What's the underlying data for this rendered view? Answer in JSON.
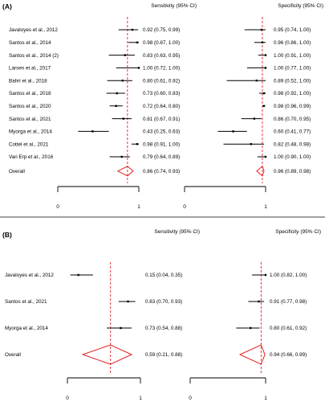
{
  "chart_data": [
    {
      "type": "forest",
      "panel_label": "(A)",
      "col_headers": {
        "sensitivity": "Sensitivity (95% CI)",
        "specificity": "Specificity (95% CI)"
      },
      "axis_ticks": [
        0,
        1
      ],
      "xlim": [
        0,
        1
      ],
      "pooled_line_color": "#e02020",
      "summary_color": "#e02020",
      "studies": [
        {
          "label": "Javaloyes et al., 2012",
          "sens": [
            0.92,
            0.75,
            0.99
          ],
          "sens_text": "0.92 (0.75, 0.99)",
          "spec": [
            0.95,
            0.74,
            1.0
          ],
          "spec_text": "0.95 (0.74, 1.00)"
        },
        {
          "label": "Santos et al., 2014",
          "sens": [
            0.98,
            0.87,
            1.0
          ],
          "sens_text": "0.98 (0.87, 1.00)",
          "spec": [
            0.96,
            0.86,
            1.0
          ],
          "spec_text": "0.96 (0.86, 1.00)"
        },
        {
          "label": "Santos et al., 2014 (2)",
          "sens": [
            0.83,
            0.63,
            0.95
          ],
          "sens_text": "0.83 (0.63, 0.95)",
          "spec": [
            1.0,
            0.91,
            1.0
          ],
          "spec_text": "1.00 (0.91, 1.00)"
        },
        {
          "label": "Larsen et al., 2017",
          "sens": [
            1.0,
            0.72,
            1.0
          ],
          "sens_text": "1.00 (0.72, 1.00)",
          "spec": [
            1.0,
            0.77,
            1.0
          ],
          "spec_text": "1.00 (0.77, 1.00)"
        },
        {
          "label": "Bahri et al., 2018",
          "sens": [
            0.8,
            0.61,
            0.92
          ],
          "sens_text": "0.80 (0.61, 0.92)",
          "spec": [
            0.89,
            0.52,
            1.0
          ],
          "spec_text": "0.89 (0.52, 1.00)"
        },
        {
          "label": "Santos et al., 2018",
          "sens": [
            0.73,
            0.6,
            0.83
          ],
          "sens_text": "0.73 (0.60, 0.83)",
          "spec": [
            0.98,
            0.92,
            1.0
          ],
          "spec_text": "0.98 (0.92, 1.00)"
        },
        {
          "label": "Santos et al., 2020",
          "sens": [
            0.72,
            0.64,
            0.8
          ],
          "sens_text": "0.72 (0.64, 0.80)",
          "spec": [
            0.98,
            0.96,
            0.99
          ],
          "spec_text": "0.98 (0.96, 0.99)"
        },
        {
          "label": "Santos et al., 2021",
          "sens": [
            0.81,
            0.67,
            0.91
          ],
          "sens_text": "0.81 (0.67, 0.91)",
          "spec": [
            0.86,
            0.7,
            0.95
          ],
          "spec_text": "0.86 (0.70, 0.95)"
        },
        {
          "label": "Myorga et al., 2014",
          "sens": [
            0.43,
            0.25,
            0.63
          ],
          "sens_text": "0.43 (0.25, 0.63)",
          "spec": [
            0.6,
            0.41,
            0.77
          ],
          "spec_text": "0.60 (0.41, 0.77)"
        },
        {
          "label": "Cottel et al., 2021",
          "sens": [
            0.98,
            0.91,
            1.0
          ],
          "sens_text": "0.98 (0.91, 1.00)",
          "spec": [
            0.82,
            0.48,
            0.98
          ],
          "spec_text": "0.82 (0.48, 0.98)"
        },
        {
          "label": "Van Erp et al., 2016",
          "sens": [
            0.79,
            0.64,
            0.89
          ],
          "sens_text": "0.79 (0.64, 0.89)",
          "spec": [
            1.0,
            0.9,
            1.0
          ],
          "spec_text": "1.00 (0.90, 1.00)"
        }
      ],
      "overall": {
        "label": "Overall",
        "sens": [
          0.86,
          0.74,
          0.93
        ],
        "sens_text": "0.86 (0.74, 0.93)",
        "spec": [
          0.96,
          0.89,
          0.98
        ],
        "spec_text": "0.96 (0.89, 0.98)"
      }
    },
    {
      "type": "forest",
      "panel_label": "(B)",
      "col_headers": {
        "sensitivity": "Sensitivity (95% CI)",
        "specificity": "Specificity (95% CI)"
      },
      "axis_ticks": [
        0,
        1
      ],
      "xlim": [
        0,
        1
      ],
      "pooled_line_color": "#e02020",
      "summary_color": "#e02020",
      "studies": [
        {
          "label": "Javaloyes et al., 2012",
          "sens": [
            0.15,
            0.04,
            0.35
          ],
          "sens_text": "0.15 (0.04, 0.35)",
          "spec": [
            1.0,
            0.82,
            1.0
          ],
          "spec_text": "1.00 (0.82, 1.00)"
        },
        {
          "label": "Santos et al., 2021",
          "sens": [
            0.83,
            0.7,
            0.93
          ],
          "sens_text": "0.83 (0.70, 0.93)",
          "spec": [
            0.91,
            0.77,
            0.98
          ],
          "spec_text": "0.91 (0.77, 0.98)"
        },
        {
          "label": "Myorga et al., 2014",
          "sens": [
            0.73,
            0.54,
            0.88
          ],
          "sens_text": "0.73 (0.54, 0.88)",
          "spec": [
            0.8,
            0.61,
            0.92
          ],
          "spec_text": "0.80 (0.61, 0.92)"
        }
      ],
      "overall": {
        "label": "Overall",
        "sens": [
          0.59,
          0.21,
          0.88
        ],
        "sens_text": "0.59 (0.21, 0.88)",
        "spec": [
          0.94,
          0.66,
          0.99
        ],
        "spec_text": "0.94 (0.66, 0.99)"
      }
    }
  ]
}
